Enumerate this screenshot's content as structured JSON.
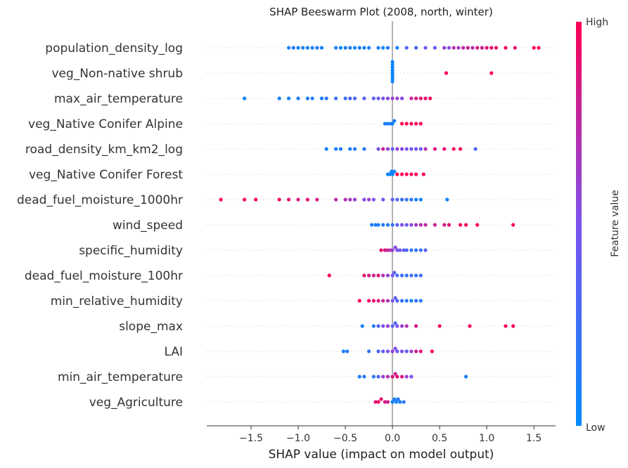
{
  "chart_data": {
    "type": "scatter",
    "subtype": "shap-beeswarm",
    "title": "SHAP Beeswarm Plot (2008, north, winter)",
    "xlabel": "SHAP value (impact on model output)",
    "xlim": [
      -1.97,
      1.73
    ],
    "xticks": [
      -1.5,
      -1.0,
      -0.5,
      0.0,
      0.5,
      1.0,
      1.5
    ],
    "xtick_labels": [
      "−1.5",
      "−1.0",
      "−0.5",
      "0.0",
      "0.5",
      "1.0",
      "1.5"
    ],
    "colorbar": {
      "label": "Feature value",
      "high": "High",
      "low": "Low",
      "low_color": "#008afb",
      "high_color": "#ff0052"
    },
    "features": [
      {
        "name": "population_density_log",
        "points": [
          [
            -1.1,
            0.1
          ],
          [
            -1.05,
            0.15
          ],
          [
            -1.0,
            0.05
          ],
          [
            -0.95,
            0.12
          ],
          [
            -0.9,
            0.1
          ],
          [
            -0.85,
            0.08
          ],
          [
            -0.8,
            0.15
          ],
          [
            -0.75,
            0.08
          ],
          [
            -0.6,
            0.1
          ],
          [
            -0.55,
            0.05
          ],
          [
            -0.5,
            0.15
          ],
          [
            -0.45,
            0.12
          ],
          [
            -0.4,
            0.08
          ],
          [
            -0.35,
            0.1
          ],
          [
            -0.3,
            0.05
          ],
          [
            -0.25,
            0.1
          ],
          [
            -0.15,
            0.12
          ],
          [
            -0.1,
            0.08
          ],
          [
            -0.05,
            0.15
          ],
          [
            0.05,
            0.1
          ],
          [
            0.15,
            0.35
          ],
          [
            0.25,
            0.3
          ],
          [
            0.35,
            0.45
          ],
          [
            0.45,
            0.4
          ],
          [
            0.55,
            0.6
          ],
          [
            0.6,
            0.55
          ],
          [
            0.65,
            0.7
          ],
          [
            0.7,
            0.65
          ],
          [
            0.75,
            0.75
          ],
          [
            0.8,
            0.8
          ],
          [
            0.85,
            0.7
          ],
          [
            0.9,
            0.85
          ],
          [
            0.95,
            0.8
          ],
          [
            1.0,
            0.9
          ],
          [
            1.05,
            0.95
          ],
          [
            1.1,
            0.9
          ],
          [
            1.2,
            0.95
          ],
          [
            1.3,
            0.9
          ],
          [
            1.5,
            1.0
          ],
          [
            1.55,
            1.0
          ]
        ]
      },
      {
        "name": "veg_Non-native shrub",
        "points": [
          [
            0.0,
            0.05
          ],
          [
            0.0,
            0.05
          ],
          [
            0.0,
            0.05
          ],
          [
            0.0,
            0.05
          ],
          [
            0.0,
            0.05
          ],
          [
            0.0,
            0.05
          ],
          [
            0.0,
            0.05
          ],
          [
            0.0,
            0.05
          ],
          [
            0.57,
            1.0
          ],
          [
            1.05,
            1.0
          ]
        ]
      },
      {
        "name": "max_air_temperature",
        "points": [
          [
            -1.57,
            0.05
          ],
          [
            -1.2,
            0.1
          ],
          [
            -1.1,
            0.08
          ],
          [
            -1.0,
            0.12
          ],
          [
            -0.9,
            0.1
          ],
          [
            -0.85,
            0.15
          ],
          [
            -0.75,
            0.12
          ],
          [
            -0.7,
            0.2
          ],
          [
            -0.6,
            0.2
          ],
          [
            -0.5,
            0.25
          ],
          [
            -0.45,
            0.3
          ],
          [
            -0.4,
            0.3
          ],
          [
            -0.3,
            0.35
          ],
          [
            -0.2,
            0.4
          ],
          [
            -0.15,
            0.45
          ],
          [
            -0.1,
            0.5
          ],
          [
            -0.05,
            0.55
          ],
          [
            0.0,
            0.6
          ],
          [
            0.05,
            0.6
          ],
          [
            0.1,
            0.55
          ],
          [
            0.2,
            0.8
          ],
          [
            0.25,
            0.85
          ],
          [
            0.3,
            0.9
          ],
          [
            0.35,
            0.9
          ],
          [
            0.4,
            0.95
          ]
        ]
      },
      {
        "name": "veg_Native Conifer Alpine",
        "points": [
          [
            -0.08,
            0.1
          ],
          [
            -0.05,
            0.1
          ],
          [
            -0.02,
            0.1
          ],
          [
            0.0,
            0.05
          ],
          [
            0.02,
            0.1
          ],
          [
            0.1,
            1.0
          ],
          [
            0.15,
            1.0
          ],
          [
            0.2,
            1.0
          ],
          [
            0.25,
            1.0
          ],
          [
            0.3,
            1.0
          ]
        ]
      },
      {
        "name": "road_density_km_km2_log",
        "points": [
          [
            -0.7,
            0.1
          ],
          [
            -0.6,
            0.1
          ],
          [
            -0.55,
            0.12
          ],
          [
            -0.45,
            0.1
          ],
          [
            -0.4,
            0.15
          ],
          [
            -0.3,
            0.12
          ],
          [
            -0.15,
            0.5
          ],
          [
            -0.1,
            0.8
          ],
          [
            -0.05,
            0.6
          ],
          [
            0.0,
            0.4
          ],
          [
            0.05,
            0.6
          ],
          [
            0.1,
            0.55
          ],
          [
            0.15,
            0.5
          ],
          [
            0.2,
            0.45
          ],
          [
            0.25,
            0.5
          ],
          [
            0.3,
            0.4
          ],
          [
            0.35,
            0.7
          ],
          [
            0.45,
            0.85
          ],
          [
            0.55,
            0.9
          ],
          [
            0.65,
            0.95
          ],
          [
            0.72,
            0.95
          ],
          [
            0.88,
            0.3
          ]
        ]
      },
      {
        "name": "veg_Native Conifer Forest",
        "points": [
          [
            -0.05,
            0.05
          ],
          [
            -0.03,
            0.05
          ],
          [
            -0.01,
            0.05
          ],
          [
            0.0,
            0.05
          ],
          [
            0.02,
            0.05
          ],
          [
            0.05,
            1.0
          ],
          [
            0.1,
            1.0
          ],
          [
            0.15,
            1.0
          ],
          [
            0.2,
            1.0
          ],
          [
            0.25,
            1.0
          ],
          [
            0.33,
            1.0
          ]
        ]
      },
      {
        "name": "dead_fuel_moisture_1000hr",
        "points": [
          [
            -1.82,
            1.0
          ],
          [
            -1.57,
            0.95
          ],
          [
            -1.45,
            1.0
          ],
          [
            -1.2,
            0.95
          ],
          [
            -1.1,
            0.9
          ],
          [
            -1.0,
            0.85
          ],
          [
            -0.9,
            0.9
          ],
          [
            -0.8,
            0.85
          ],
          [
            -0.6,
            0.75
          ],
          [
            -0.5,
            0.7
          ],
          [
            -0.45,
            0.65
          ],
          [
            -0.4,
            0.6
          ],
          [
            -0.3,
            0.55
          ],
          [
            -0.25,
            0.6
          ],
          [
            -0.2,
            0.5
          ],
          [
            -0.1,
            0.45
          ],
          [
            0.0,
            0.35
          ],
          [
            0.05,
            0.3
          ],
          [
            0.1,
            0.25
          ],
          [
            0.15,
            0.2
          ],
          [
            0.2,
            0.15
          ],
          [
            0.25,
            0.1
          ],
          [
            0.3,
            0.1
          ],
          [
            0.58,
            0.05
          ]
        ]
      },
      {
        "name": "wind_speed",
        "points": [
          [
            -0.22,
            0.1
          ],
          [
            -0.18,
            0.12
          ],
          [
            -0.15,
            0.1
          ],
          [
            -0.1,
            0.15
          ],
          [
            -0.05,
            0.12
          ],
          [
            0.0,
            0.2
          ],
          [
            0.05,
            0.35
          ],
          [
            0.1,
            0.5
          ],
          [
            0.15,
            0.45
          ],
          [
            0.2,
            0.55
          ],
          [
            0.25,
            0.65
          ],
          [
            0.3,
            0.7
          ],
          [
            0.35,
            0.75
          ],
          [
            0.45,
            0.8
          ],
          [
            0.55,
            0.85
          ],
          [
            0.6,
            0.9
          ],
          [
            0.72,
            0.95
          ],
          [
            0.78,
            0.95
          ],
          [
            0.9,
            1.0
          ],
          [
            1.28,
            1.0
          ]
        ]
      },
      {
        "name": "specific_humidity",
        "points": [
          [
            -0.12,
            0.9
          ],
          [
            -0.08,
            0.85
          ],
          [
            -0.05,
            0.8
          ],
          [
            -0.02,
            0.7
          ],
          [
            0.0,
            0.6
          ],
          [
            0.03,
            0.55
          ],
          [
            0.05,
            0.5
          ],
          [
            0.08,
            0.45
          ],
          [
            0.12,
            0.4
          ],
          [
            0.15,
            0.3
          ],
          [
            0.2,
            0.2
          ],
          [
            0.25,
            0.2
          ],
          [
            0.3,
            0.25
          ],
          [
            0.35,
            0.35
          ]
        ]
      },
      {
        "name": "dead_fuel_moisture_100hr",
        "points": [
          [
            -0.67,
            1.0
          ],
          [
            -0.3,
            0.9
          ],
          [
            -0.25,
            0.85
          ],
          [
            -0.2,
            0.8
          ],
          [
            -0.15,
            0.9
          ],
          [
            -0.1,
            0.7
          ],
          [
            -0.05,
            0.6
          ],
          [
            0.0,
            0.5
          ],
          [
            0.02,
            0.35
          ],
          [
            0.05,
            0.3
          ],
          [
            0.1,
            0.25
          ],
          [
            0.15,
            0.2
          ],
          [
            0.2,
            0.3
          ],
          [
            0.25,
            0.2
          ],
          [
            0.3,
            0.3
          ]
        ]
      },
      {
        "name": "min_relative_humidity",
        "points": [
          [
            -0.35,
            1.0
          ],
          [
            -0.25,
            0.95
          ],
          [
            -0.2,
            0.9
          ],
          [
            -0.15,
            0.85
          ],
          [
            -0.1,
            0.8
          ],
          [
            -0.05,
            0.7
          ],
          [
            0.0,
            0.5
          ],
          [
            0.03,
            0.4
          ],
          [
            0.05,
            0.3
          ],
          [
            0.1,
            0.2
          ],
          [
            0.15,
            0.15
          ],
          [
            0.2,
            0.1
          ],
          [
            0.25,
            0.2
          ],
          [
            0.3,
            0.15
          ]
        ]
      },
      {
        "name": "slope_max",
        "points": [
          [
            -0.32,
            0.1
          ],
          [
            -0.2,
            0.15
          ],
          [
            -0.15,
            0.3
          ],
          [
            -0.1,
            0.5
          ],
          [
            -0.05,
            0.6
          ],
          [
            0.0,
            0.4
          ],
          [
            0.03,
            0.3
          ],
          [
            0.05,
            0.5
          ],
          [
            0.1,
            0.6
          ],
          [
            0.15,
            0.7
          ],
          [
            0.25,
            0.85
          ],
          [
            0.5,
            0.95
          ],
          [
            0.82,
            1.0
          ],
          [
            1.2,
            1.0
          ],
          [
            1.28,
            1.0
          ]
        ]
      },
      {
        "name": "LAI",
        "points": [
          [
            -0.52,
            0.1
          ],
          [
            -0.48,
            0.15
          ],
          [
            -0.25,
            0.2
          ],
          [
            -0.15,
            0.3
          ],
          [
            -0.1,
            0.4
          ],
          [
            -0.05,
            0.5
          ],
          [
            0.0,
            0.6
          ],
          [
            0.03,
            0.5
          ],
          [
            0.05,
            0.45
          ],
          [
            0.1,
            0.5
          ],
          [
            0.15,
            0.4
          ],
          [
            0.2,
            0.6
          ],
          [
            0.25,
            0.8
          ],
          [
            0.3,
            0.9
          ],
          [
            0.42,
            1.0
          ]
        ]
      },
      {
        "name": "min_air_temperature",
        "points": [
          [
            -0.35,
            0.1
          ],
          [
            -0.3,
            0.15
          ],
          [
            -0.2,
            0.2
          ],
          [
            -0.15,
            0.3
          ],
          [
            -0.1,
            0.6
          ],
          [
            -0.05,
            0.7
          ],
          [
            0.0,
            0.85
          ],
          [
            0.03,
            0.8
          ],
          [
            0.05,
            0.9
          ],
          [
            0.1,
            0.85
          ],
          [
            0.15,
            0.6
          ],
          [
            0.2,
            0.5
          ],
          [
            0.78,
            0.1
          ]
        ]
      },
      {
        "name": "veg_Agriculture",
        "points": [
          [
            -0.18,
            0.9
          ],
          [
            -0.15,
            0.95
          ],
          [
            -0.12,
            0.9
          ],
          [
            -0.08,
            0.85
          ],
          [
            -0.05,
            0.8
          ],
          [
            0.0,
            0.1
          ],
          [
            0.02,
            0.1
          ],
          [
            0.04,
            0.1
          ],
          [
            0.06,
            0.15
          ],
          [
            0.08,
            0.1
          ],
          [
            0.12,
            0.2
          ]
        ]
      }
    ]
  }
}
